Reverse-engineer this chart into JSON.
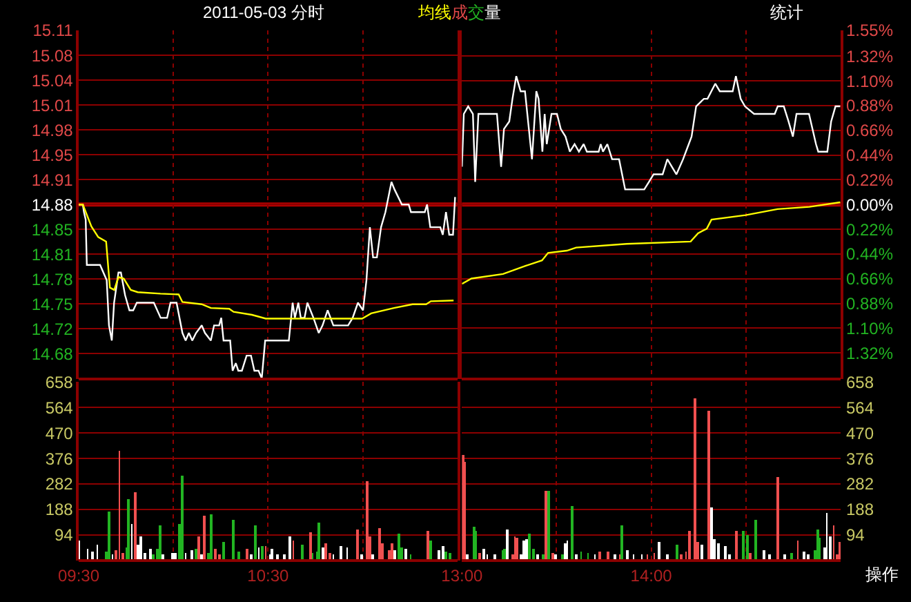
{
  "chart_data": [
    {
      "type": "line",
      "title": "2011-05-03 分时",
      "xlim": [
        9.5,
        11.5
      ],
      "xticks": [
        {
          "value": 9.5,
          "label": null
        },
        {
          "value": 10,
          "label": null
        },
        {
          "value": 10.5,
          "label": null
        },
        {
          "value": 11,
          "label": null
        }
      ],
      "ylim": [
        14.6494,
        15.1106
      ],
      "yticks": [
        {
          "value": 14.6824,
          "label": "14.68"
        },
        {
          "value": 14.7153,
          "label": "14.72"
        },
        {
          "value": 14.7482,
          "label": "14.75"
        },
        {
          "value": 14.7812,
          "label": "14.78"
        },
        {
          "value": 14.8141,
          "label": "14.81"
        },
        {
          "value": 14.8471,
          "label": "14.85"
        },
        {
          "value": 14.88,
          "label": "14.88"
        },
        {
          "value": 14.9129,
          "label": "14.91"
        },
        {
          "value": 14.9459,
          "label": "14.95"
        },
        {
          "value": 14.9788,
          "label": "14.98"
        },
        {
          "value": 15.0118,
          "label": "15.01"
        },
        {
          "value": 15.0447,
          "label": "15.04"
        },
        {
          "value": 15.0776,
          "label": "15.08"
        },
        {
          "value": 15.1106,
          "label": "15.11"
        }
      ],
      "ref_lines": [
        {
          "axis": "y",
          "value": 14.88,
          "color": "#b00000"
        }
      ],
      "grid": true,
      "tick_labels": "y",
      "line_style": "solid",
      "series": [
        {
          "color": "#ffffff",
          "x": [
            9.5,
            9.522,
            9.528,
            9.537,
            9.543,
            9.613,
            9.648,
            9.66,
            9.675,
            9.687,
            9.71,
            9.723,
            9.745,
            9.768,
            9.788,
            9.807,
            9.897,
            9.933,
            9.967,
            9.985,
            10.017,
            10.048,
            10.065,
            10.082,
            10.1,
            10.12,
            10.15,
            10.167,
            10.198,
            10.215,
            10.242,
            10.253,
            10.265,
            10.3,
            10.313,
            10.33,
            10.343,
            10.362,
            10.387,
            10.41,
            10.428,
            10.45,
            10.467,
            10.485,
            10.61,
            10.63,
            10.642,
            10.66,
            10.673,
            10.693,
            10.708,
            10.74,
            10.768,
            10.788,
            10.815,
            10.845,
            10.923,
            10.947,
            10.975,
            11.002,
            11.02,
            11.038,
            11.055,
            11.075,
            11.097,
            11.12,
            11.152,
            11.168,
            11.207,
            11.243,
            11.255,
            11.328,
            11.34,
            11.357,
            11.41,
            11.423,
            11.44,
            11.457,
            11.477,
            11.488
          ],
          "values": [
            14.88,
            14.88,
            14.87,
            14.86,
            14.8,
            14.8,
            14.78,
            14.72,
            14.7,
            14.75,
            14.79,
            14.79,
            14.76,
            14.74,
            14.74,
            14.75,
            14.75,
            14.73,
            14.73,
            14.75,
            14.75,
            14.71,
            14.7,
            14.71,
            14.7,
            14.71,
            14.72,
            14.71,
            14.7,
            14.72,
            14.72,
            14.73,
            14.7,
            14.7,
            14.66,
            14.67,
            14.66,
            14.66,
            14.68,
            14.68,
            14.66,
            14.66,
            14.65,
            14.7,
            14.7,
            14.75,
            14.73,
            14.75,
            14.73,
            14.73,
            14.75,
            14.73,
            14.71,
            14.72,
            14.74,
            14.72,
            14.72,
            14.73,
            14.75,
            14.74,
            14.78,
            14.85,
            14.81,
            14.81,
            14.85,
            14.87,
            14.91,
            14.9,
            14.88,
            14.88,
            14.87,
            14.87,
            14.88,
            14.85,
            14.85,
            14.84,
            14.87,
            14.84,
            14.84,
            14.89
          ]
        },
        {
          "name": "均线",
          "color": "#ffff00",
          "x": [
            9.5,
            9.522,
            9.567,
            9.603,
            9.645,
            9.665,
            9.688,
            9.71,
            9.738,
            9.775,
            9.812,
            9.932,
            10.028,
            10.048,
            10.15,
            10.198,
            10.295,
            10.318,
            10.415,
            10.488,
            10.997,
            11.045,
            11.165,
            11.263,
            11.335,
            11.36,
            11.48
          ],
          "values": [
            14.88,
            14.88,
            14.851,
            14.837,
            14.831,
            14.77,
            14.767,
            14.784,
            14.782,
            14.767,
            14.764,
            14.762,
            14.761,
            14.751,
            14.748,
            14.743,
            14.742,
            14.738,
            14.734,
            14.729,
            14.729,
            14.736,
            14.743,
            14.748,
            14.748,
            14.752,
            14.753
          ]
        }
      ]
    },
    {
      "type": "line",
      "annotations": [
        "统计"
      ],
      "xlim": [
        13,
        15
      ],
      "xticks": [
        {
          "value": 13,
          "label": null
        },
        {
          "value": 13.5,
          "label": null
        },
        {
          "value": 14,
          "label": null
        },
        {
          "value": 14.5,
          "label": null
        }
      ],
      "ylim": [
        14.6494,
        15.1106
      ],
      "y2lim": [
        -1.55,
        1.55
      ],
      "y2ticks": [
        {
          "value": -1.32,
          "label": "1.32%"
        },
        {
          "value": -1.1,
          "label": "1.10%"
        },
        {
          "value": -0.88,
          "label": "0.88%"
        },
        {
          "value": -0.66,
          "label": "0.66%"
        },
        {
          "value": -0.44,
          "label": "0.44%"
        },
        {
          "value": -0.22,
          "label": "0.22%"
        },
        {
          "value": 0,
          "label": "0.00%"
        },
        {
          "value": 0.22,
          "label": "0.22%"
        },
        {
          "value": 0.44,
          "label": "0.44%"
        },
        {
          "value": 0.66,
          "label": "0.66%"
        },
        {
          "value": 0.88,
          "label": "0.88%"
        },
        {
          "value": 1.1,
          "label": "1.10%"
        },
        {
          "value": 1.32,
          "label": "1.32%"
        },
        {
          "value": 1.55,
          "label": "1.55%"
        }
      ],
      "ref_lines": [
        {
          "axis": "y",
          "value": 14.88,
          "color": "#b00000"
        }
      ],
      "grid": true,
      "tick_labels": "y",
      "line_style": "solid",
      "series": [
        {
          "color": "#ffffff",
          "x": [
            13.0,
            13.01,
            13.033,
            13.058,
            13.07,
            13.087,
            13.185,
            13.207,
            13.222,
            13.25,
            13.267,
            13.287,
            13.31,
            13.333,
            13.37,
            13.393,
            13.405,
            13.425,
            13.437,
            13.448,
            13.473,
            13.502,
            13.522,
            13.547,
            13.57,
            13.595,
            13.618,
            13.643,
            13.66,
            13.722,
            13.733,
            13.745,
            13.768,
            13.793,
            13.83,
            13.862,
            13.963,
            13.988,
            14.012,
            14.06,
            14.085,
            14.133,
            14.168,
            14.198,
            14.213,
            14.237,
            14.278,
            14.297,
            14.338,
            14.362,
            14.43,
            14.447,
            14.472,
            14.495,
            14.543,
            14.652,
            14.668,
            14.7,
            14.725,
            14.748,
            14.767,
            14.833,
            14.87,
            14.882,
            14.93,
            14.95,
            14.973,
            14.998
          ],
          "values": [
            14.93,
            15.0,
            15.01,
            15.0,
            14.91,
            15.0,
            15.0,
            14.93,
            14.98,
            14.99,
            15.02,
            15.05,
            15.03,
            15.03,
            14.94,
            15.03,
            15.02,
            14.95,
            15.0,
            14.96,
            15.0,
            15.0,
            14.98,
            14.97,
            14.95,
            14.96,
            14.95,
            14.96,
            14.95,
            14.95,
            14.96,
            14.95,
            14.96,
            14.94,
            14.94,
            14.9,
            14.9,
            14.91,
            14.92,
            14.92,
            14.94,
            14.92,
            14.94,
            14.96,
            14.97,
            15.01,
            15.02,
            15.02,
            15.04,
            15.03,
            15.03,
            15.05,
            15.02,
            15.01,
            15.0,
            15.0,
            15.01,
            15.01,
            14.99,
            14.97,
            15.0,
            15.0,
            14.96,
            14.95,
            14.95,
            14.99,
            15.01,
            15.01
          ]
        },
        {
          "color": "#ffff00",
          "x": [
            13.0,
            13.05,
            13.217,
            13.338,
            13.423,
            13.455,
            13.555,
            13.603,
            13.87,
            14.208,
            14.247,
            14.293,
            14.318,
            14.498,
            14.667,
            14.835,
            14.998
          ],
          "values": [
            14.775,
            14.782,
            14.788,
            14.799,
            14.806,
            14.816,
            14.819,
            14.823,
            14.828,
            14.831,
            14.842,
            14.848,
            14.86,
            14.866,
            14.874,
            14.877,
            14.883
          ]
        }
      ]
    },
    {
      "type": "bar",
      "xlim": [
        9.5,
        11.5
      ],
      "xticks": [
        {
          "value": 9.5,
          "label": "09:30"
        },
        {
          "value": 10,
          "label": null
        },
        {
          "value": 10.5,
          "label": "10:30"
        },
        {
          "value": 11,
          "label": null
        }
      ],
      "ylim": [
        0,
        658
      ],
      "yticks": [
        94,
        188,
        282,
        376,
        470,
        564,
        658
      ],
      "grid": true,
      "series": [
        {
          "name": "成交量",
          "x": [
            9.5,
            9.547,
            9.57,
            9.598,
            9.647,
            9.662,
            9.678,
            9.698,
            9.715,
            9.732,
            9.752,
            9.763,
            9.78,
            9.798,
            9.815,
            9.828,
            9.848,
            9.88,
            9.895,
            9.915,
            9.932,
            9.945,
            9.993,
            10.012,
            10.032,
            10.048,
            10.065,
            10.097,
            10.12,
            10.132,
            10.148,
            10.165,
            10.187,
            10.198,
            10.222,
            10.245,
            10.265,
            10.318,
            10.348,
            10.387,
            10.41,
            10.435,
            10.452,
            10.468,
            10.488,
            10.512,
            10.523,
            10.548,
            10.585,
            10.617,
            10.633,
            10.682,
            10.722,
            10.735,
            10.758,
            10.77,
            10.79,
            10.807,
            10.827,
            10.845,
            10.887,
            10.918,
            10.975,
            10.995,
            11.023,
            11.038,
            11.055,
            11.087,
            11.103,
            11.14,
            11.152,
            11.168,
            11.19,
            11.208,
            11.225,
            11.253,
            11.345,
            11.357,
            11.405,
            11.425,
            11.442,
            11.462
          ],
          "values": [
            72,
            41,
            33,
            56,
            33,
            179,
            20,
            36,
            403,
            28,
            48,
            225,
            132,
            253,
            58,
            86,
            28,
            43,
            23,
            41,
            127,
            23,
            28,
            28,
            135,
            312,
            28,
            36,
            41,
            86,
            20,
            163,
            28,
            171,
            44,
            23,
            69,
            151,
            33,
            44,
            20,
            130,
            49,
            53,
            53,
            20,
            44,
            20,
            20,
            86,
            72,
            58,
            102,
            28,
            33,
            141,
            49,
            64,
            28,
            20,
            53,
            49,
            113,
            20,
            291,
            86,
            20,
            118,
            64,
            36,
            61,
            36,
            97,
            49,
            41,
            20,
            107,
            74,
            36,
            53,
            33,
            28
          ],
          "colors": [
            "#ffffff",
            "#ffffff",
            "#ffffff",
            "#ffffff",
            "#22b422",
            "#22b422",
            "#ffffff",
            "#f05050",
            "#f05050",
            "#f05050",
            "#22b422",
            "#22b422",
            "#ffffff",
            "#f05050",
            "#ffffff",
            "#ffffff",
            "#ffffff",
            "#ffffff",
            "#22b422",
            "#22b422",
            "#22b422",
            "#ffffff",
            "#ffffff",
            "#ffffff",
            "#22b422",
            "#22b422",
            "#ffffff",
            "#ffffff",
            "#22b422",
            "#f05050",
            "#ffffff",
            "#f05050",
            "#22b422",
            "#22b422",
            "#f05050",
            "#f05050",
            "#22b422",
            "#22b422",
            "#22b422",
            "#f05050",
            "#ffffff",
            "#22b422",
            "#ffffff",
            "#22b422",
            "#f05050",
            "#ffffff",
            "#ffffff",
            "#ffffff",
            "#ffffff",
            "#ffffff",
            "#f05050",
            "#22b422",
            "#f05050",
            "#22b422",
            "#22b422",
            "#22b422",
            "#ffffff",
            "#f05050",
            "#f05050",
            "#ffffff",
            "#ffffff",
            "#ffffff",
            "#f05050",
            "#ffffff",
            "#f05050",
            "#f05050",
            "#ffffff",
            "#f05050",
            "#f05050",
            "#f05050",
            "#f05050",
            "#ffffff",
            "#22b422",
            "#22b422",
            "#ffffff",
            "#22b422",
            "#f05050",
            "#22b422",
            "#ffffff",
            "#ffffff",
            "#22b422",
            "#22b422"
          ]
        }
      ]
    },
    {
      "type": "bar",
      "annotations": [
        "操作"
      ],
      "xlim": [
        13,
        15
      ],
      "xticks": [
        {
          "value": 13,
          "label": "13:00"
        },
        {
          "value": 13.5,
          "label": null
        },
        {
          "value": 14,
          "label": "14:00"
        },
        {
          "value": 14.5,
          "label": null
        }
      ],
      "y2lim": [
        0,
        658
      ],
      "y2ticks": [
        94,
        188,
        282,
        376,
        470,
        564,
        658
      ],
      "grid": true,
      "series": [
        {
          "axis": "y2",
          "x": [
            13.005,
            13.015,
            13.027,
            13.063,
            13.075,
            13.093,
            13.117,
            13.135,
            13.177,
            13.215,
            13.227,
            13.243,
            13.268,
            13.28,
            13.292,
            13.312,
            13.328,
            13.343,
            13.357,
            13.377,
            13.402,
            13.433,
            13.447,
            13.462,
            13.48,
            13.497,
            13.533,
            13.545,
            13.558,
            13.582,
            13.607,
            13.63,
            13.667,
            13.703,
            13.728,
            13.775,
            13.812,
            13.837,
            13.848,
            13.877,
            13.908,
            13.952,
            13.98,
            14.017,
            14.045,
            14.088,
            14.137,
            14.162,
            14.185,
            14.2,
            14.233,
            14.248,
            14.27,
            14.302,
            14.322,
            14.337,
            14.355,
            14.392,
            14.415,
            14.453,
            14.49,
            14.507,
            14.522,
            14.555,
            14.598,
            14.623,
            14.672,
            14.708,
            14.745,
            14.775,
            14.807,
            14.83,
            14.867,
            14.88,
            14.892,
            14.917,
            14.928,
            14.945,
            14.965,
            14.982,
            14.997
          ],
          "values": [
            387,
            365,
            23,
            122,
            110,
            28,
            43,
            23,
            23,
            36,
            44,
            113,
            20,
            86,
            84,
            20,
            72,
            77,
            97,
            44,
            20,
            23,
            255,
            255,
            28,
            20,
            20,
            64,
            72,
            201,
            20,
            33,
            28,
            23,
            33,
            33,
            23,
            20,
            127,
            36,
            20,
            23,
            23,
            28,
            69,
            20,
            56,
            23,
            33,
            107,
            599,
            69,
            59,
            549,
            196,
            77,
            64,
            53,
            20,
            107,
            107,
            94,
            28,
            151,
            36,
            23,
            309,
            20,
            28,
            72,
            33,
            23,
            39,
            115,
            81,
            49,
            176,
            86,
            130,
            23,
            67
          ],
          "colors": [
            "#f05050",
            "#f05050",
            "#ffffff",
            "#22b422",
            "#22b422",
            "#f05050",
            "#ffffff",
            "#ffffff",
            "#ffffff",
            "#22b422",
            "#22b422",
            "#ffffff",
            "#f05050",
            "#f05050",
            "#f05050",
            "#ffffff",
            "#ffffff",
            "#ffffff",
            "#22b422",
            "#22b422",
            "#ffffff",
            "#22b422",
            "#f05050",
            "#22b422",
            "#f05050",
            "#ffffff",
            "#22b422",
            "#ffffff",
            "#ffffff",
            "#22b422",
            "#ffffff",
            "#22b422",
            "#22b422",
            "#ffffff",
            "#f05050",
            "#f05050",
            "#ffffff",
            "#f05050",
            "#22b422",
            "#ffffff",
            "#ffffff",
            "#ffffff",
            "#f05050",
            "#f05050",
            "#ffffff",
            "#ffffff",
            "#22b422",
            "#f05050",
            "#f05050",
            "#f05050",
            "#f05050",
            "#f05050",
            "#ffffff",
            "#f05050",
            "#ffffff",
            "#ffffff",
            "#ffffff",
            "#ffffff",
            "#ffffff",
            "#f05050",
            "#22b422",
            "#22b422",
            "#f05050",
            "#22b422",
            "#ffffff",
            "#ffffff",
            "#f05050",
            "#ffffff",
            "#22b422",
            "#f05050",
            "#ffffff",
            "#ffffff",
            "#22b422",
            "#22b422",
            "#22b422",
            "#ffffff",
            "#ffffff",
            "#ffffff",
            "#f05050",
            "#f05050",
            "#f05050"
          ]
        }
      ]
    }
  ]
}
